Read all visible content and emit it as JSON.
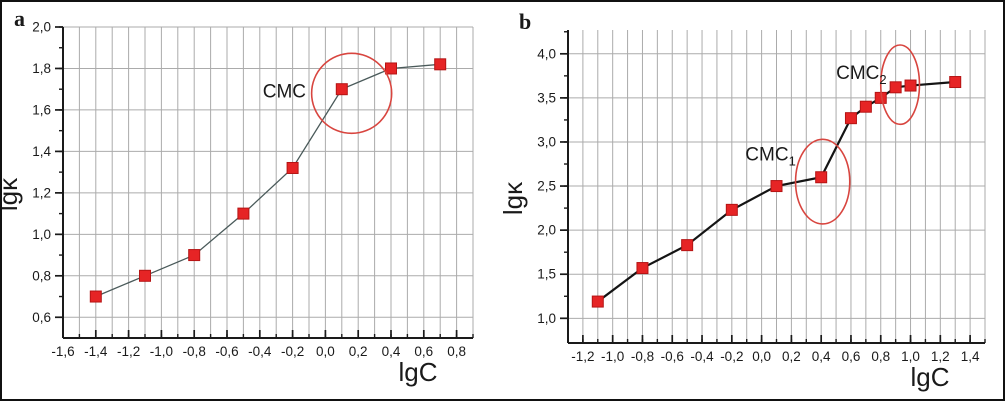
{
  "figure_title": "",
  "colors": {
    "marker_fill": "#e62425",
    "marker_border": "#b51414",
    "ellipse_stroke": "#d8453f",
    "grid": "#ababab",
    "axis": "#1a1a1a",
    "text": "#1a1a1a",
    "panel_a_line": "#4a5a5a",
    "panel_b_line": "#141414"
  },
  "chart_data": [
    {
      "type": "line",
      "panel_label": "a",
      "xlabel": "lgC",
      "ylabel": "lgκ",
      "xlim": [
        -1.6,
        0.9
      ],
      "ylim": [
        0.5,
        2.0
      ],
      "x_tick_labels": [
        "-1,6",
        "-1,4",
        "-1,2",
        "-1,0",
        "-0,8",
        "-0,6",
        "-0,4",
        "-0,2",
        "0,0",
        "0,2",
        "0,4",
        "0,6",
        "0,8"
      ],
      "y_tick_labels": [
        "0,6",
        "0,8",
        "1,0",
        "1,2",
        "1,4",
        "1,6",
        "1,8",
        "2,0"
      ],
      "x_minor_step": 0.1,
      "y_minor_step": 0.1,
      "grid_x_step": 0.1,
      "grid": true,
      "legend": "none",
      "line_key": "panel_a_line",
      "line_width": 1.3,
      "points": [
        [
          -1.4,
          0.7
        ],
        [
          -1.1,
          0.8
        ],
        [
          -0.8,
          0.9
        ],
        [
          -0.5,
          1.1
        ],
        [
          -0.2,
          1.32
        ],
        [
          0.1,
          1.7
        ],
        [
          0.4,
          1.8
        ],
        [
          0.7,
          1.82
        ]
      ],
      "annotations": [
        {
          "text": "CMC",
          "sub": "",
          "x": -0.25,
          "y": 1.69
        }
      ],
      "ellipses": [
        {
          "cx": 0.16,
          "cy": 1.68,
          "rx": 0.244,
          "ry": 0.193
        }
      ]
    },
    {
      "type": "line",
      "panel_label": "b",
      "xlabel": "lgC",
      "ylabel": "lgκ",
      "xlim": [
        -1.3,
        1.5
      ],
      "ylim": [
        0.72,
        4.27
      ],
      "x_tick_labels": [
        "-1,2",
        "-1,0",
        "-0,8",
        "-0,6",
        "-0,4",
        "-0,2",
        "0,0",
        "0,2",
        "0,4",
        "0,6",
        "0,8",
        "1,0",
        "1,2",
        "1,4"
      ],
      "y_tick_labels": [
        "1,0",
        "1,5",
        "2,0",
        "2,5",
        "3,0",
        "3,5",
        "4,0"
      ],
      "x_minor_step": 0.1,
      "y_minor_step": 0.25,
      "grid_x_step": 0.1,
      "grid": true,
      "legend": "none",
      "line_key": "panel_b_line",
      "line_width": 2.2,
      "points": [
        [
          -1.1,
          1.19
        ],
        [
          -0.8,
          1.57
        ],
        [
          -0.5,
          1.83
        ],
        [
          -0.2,
          2.23
        ],
        [
          0.1,
          2.5
        ],
        [
          0.4,
          2.6
        ],
        [
          0.6,
          3.27
        ],
        [
          0.7,
          3.4
        ],
        [
          0.8,
          3.5
        ],
        [
          0.9,
          3.62
        ],
        [
          1.0,
          3.64
        ],
        [
          1.3,
          3.68
        ]
      ],
      "annotations": [
        {
          "text": "CMC",
          "sub": "1",
          "x": 0.06,
          "y": 2.86
        },
        {
          "text": "CMC",
          "sub": "2",
          "x": 0.67,
          "y": 3.78
        }
      ],
      "ellipses": [
        {
          "cx": 0.41,
          "cy": 2.55,
          "rx": 0.182,
          "ry": 0.48
        },
        {
          "cx": 0.93,
          "cy": 3.65,
          "rx": 0.13,
          "ry": 0.45
        }
      ]
    }
  ]
}
